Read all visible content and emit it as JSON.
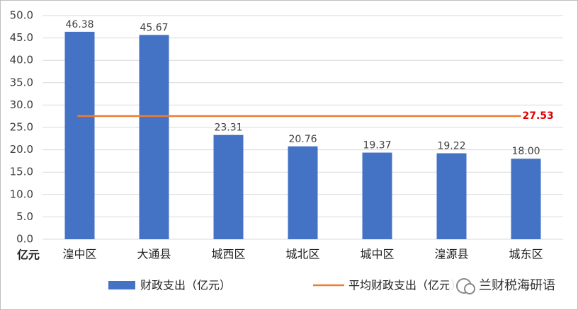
{
  "chart_data": {
    "type": "bar",
    "y_axis_label": "亿元",
    "categories": [
      "湟中区",
      "大通县",
      "城西区",
      "城北区",
      "城中区",
      "湟源县",
      "城东区"
    ],
    "series": [
      {
        "name": "财政支出（亿元）",
        "color": "#4472c4",
        "values": [
          46.38,
          45.67,
          23.31,
          20.76,
          19.37,
          19.22,
          18.0
        ],
        "value_labels": [
          "46.38",
          "45.67",
          "23.31",
          "20.76",
          "19.37",
          "19.22",
          "18.00"
        ]
      }
    ],
    "average": {
      "name": "平均财政支出（亿元）",
      "color": "#ed7d31",
      "value": 27.53
    },
    "ylim": [
      0,
      50
    ],
    "yticks": [
      {
        "value": 0,
        "label": "0.0"
      },
      {
        "value": 5,
        "label": "5.0"
      },
      {
        "value": 10,
        "label": "10.0"
      },
      {
        "value": 15,
        "label": "15.0"
      },
      {
        "value": 20,
        "label": "20.0"
      },
      {
        "value": 25,
        "label": "25.0"
      },
      {
        "value": 30,
        "label": "30.0"
      },
      {
        "value": 35,
        "label": "35.0"
      },
      {
        "value": 40,
        "label": "40.0"
      },
      {
        "value": 45,
        "label": "45.0"
      },
      {
        "value": 50,
        "label": "50.0"
      }
    ],
    "grid": true,
    "watermark": "兰财税海研语"
  }
}
